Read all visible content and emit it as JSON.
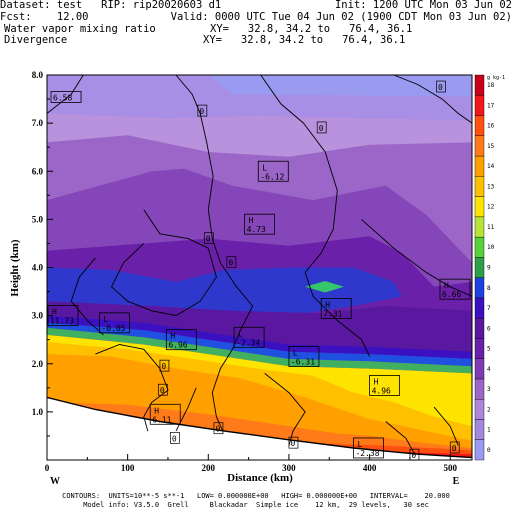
{
  "header": {
    "dataset_line": "Dataset: test   RIP: rip20020603 d1",
    "init_line": "Init: 1200 UTC Mon 03 Jun 02",
    "fcst_line": "Fcst:    12.00",
    "valid_line": "Valid: 0000 UTC Tue 04 Jun 02 (1900 CDT Mon 03 Jun 02)",
    "field1_name": "Water vapor mixing ratio",
    "field1_xy": "XY=   32.8, 34.2 to   76.4, 36.1",
    "field2_name": "Divergence",
    "field2_xy": "XY=   32.8, 34.2 to   76.4, 36.1"
  },
  "footer": {
    "contours_line": "CONTOURS:  UNITS=10**-5 s**-1   LOW= 0.000000E+00   HIGH= 0.000000E+00   INTERVAL=    20.000",
    "model_line": "Model info: V3.5.0  Grell     Blackadar  Simple ice    12 km,  29 levels,   30 sec"
  },
  "chart_data": {
    "type": "heatmap",
    "title": "Water vapor mixing ratio",
    "overlay": "Divergence",
    "xlabel": "Distance (km)",
    "ylabel": "Height (km)",
    "xlim": [
      0,
      527
    ],
    "ylim": [
      0,
      8
    ],
    "x_ticks": [
      0,
      100,
      200,
      300,
      400,
      500
    ],
    "x_tick_labels": [
      "0",
      "100",
      "200",
      "300",
      "400",
      "500"
    ],
    "y_ticks": [
      1.0,
      2.0,
      3.0,
      4.0,
      5.0,
      6.0,
      7.0,
      8.0
    ],
    "y_tick_labels": [
      "1.0",
      "2.0",
      "3.0",
      "4.0",
      "5.0",
      "6.0",
      "7.0",
      "8.0"
    ],
    "x_end_labels": {
      "left": "W",
      "right": "E"
    },
    "colorbar": {
      "unit": "g kg-1",
      "levels": [
        0,
        1,
        2,
        3,
        4,
        5,
        6,
        7,
        8,
        9,
        10,
        11,
        12,
        13,
        14,
        15,
        16,
        17,
        18
      ],
      "colors": [
        "#9a9af0",
        "#a386e0",
        "#b084d8",
        "#9c66c8",
        "#7e3cb4",
        "#6a20a8",
        "#5a18a0",
        "#3a10c0",
        "#2040e0",
        "#2fa04a",
        "#56d23a",
        "#b8e43a",
        "#ffe400",
        "#ffc000",
        "#ffa000",
        "#ff7a18",
        "#ff5010",
        "#f01818",
        "#c80018"
      ]
    },
    "series": [
      {
        "name": "H",
        "x": 0,
        "y": 3.0,
        "value": "11.73"
      },
      {
        "name": "L",
        "x": 65,
        "y": 2.85,
        "value": "-0.05"
      },
      {
        "name": "H",
        "x": 148,
        "y": 2.5,
        "value": "6.96"
      },
      {
        "name": "L",
        "x": 232,
        "y": 2.55,
        "value": "-2.34"
      },
      {
        "name": "L",
        "x": 300,
        "y": 2.15,
        "value": "-6.31"
      },
      {
        "name": "H",
        "x": 245,
        "y": 4.9,
        "value": "4.73"
      },
      {
        "name": "L",
        "x": 262,
        "y": 6.0,
        "value": "-6.12"
      },
      {
        "name": "H",
        "x": 340,
        "y": 3.15,
        "value": "7.31"
      },
      {
        "name": "H",
        "x": 400,
        "y": 1.55,
        "value": "4.96"
      },
      {
        "name": "H",
        "x": 488,
        "y": 3.55,
        "value": "6.66"
      },
      {
        "name": "H",
        "x": 128,
        "y": 0.95,
        "value": "6.11"
      },
      {
        "name": "L",
        "x": 380,
        "y": 0.25,
        "value": "-2.38"
      },
      {
        "name": "",
        "x": 5,
        "y": 7.45,
        "value": "6.58"
      }
    ],
    "zero_labels": [
      {
        "x": 192,
        "y": 7.25
      },
      {
        "x": 340,
        "y": 6.9
      },
      {
        "x": 488,
        "y": 7.75
      },
      {
        "x": 200,
        "y": 4.6
      },
      {
        "x": 228,
        "y": 4.1
      },
      {
        "x": 145,
        "y": 1.95
      },
      {
        "x": 143,
        "y": 1.45
      },
      {
        "x": 212,
        "y": 0.65
      },
      {
        "x": 158,
        "y": 0.45
      },
      {
        "x": 305,
        "y": 0.35
      },
      {
        "x": 455,
        "y": 0.1
      },
      {
        "x": 505,
        "y": 0.25
      }
    ]
  }
}
